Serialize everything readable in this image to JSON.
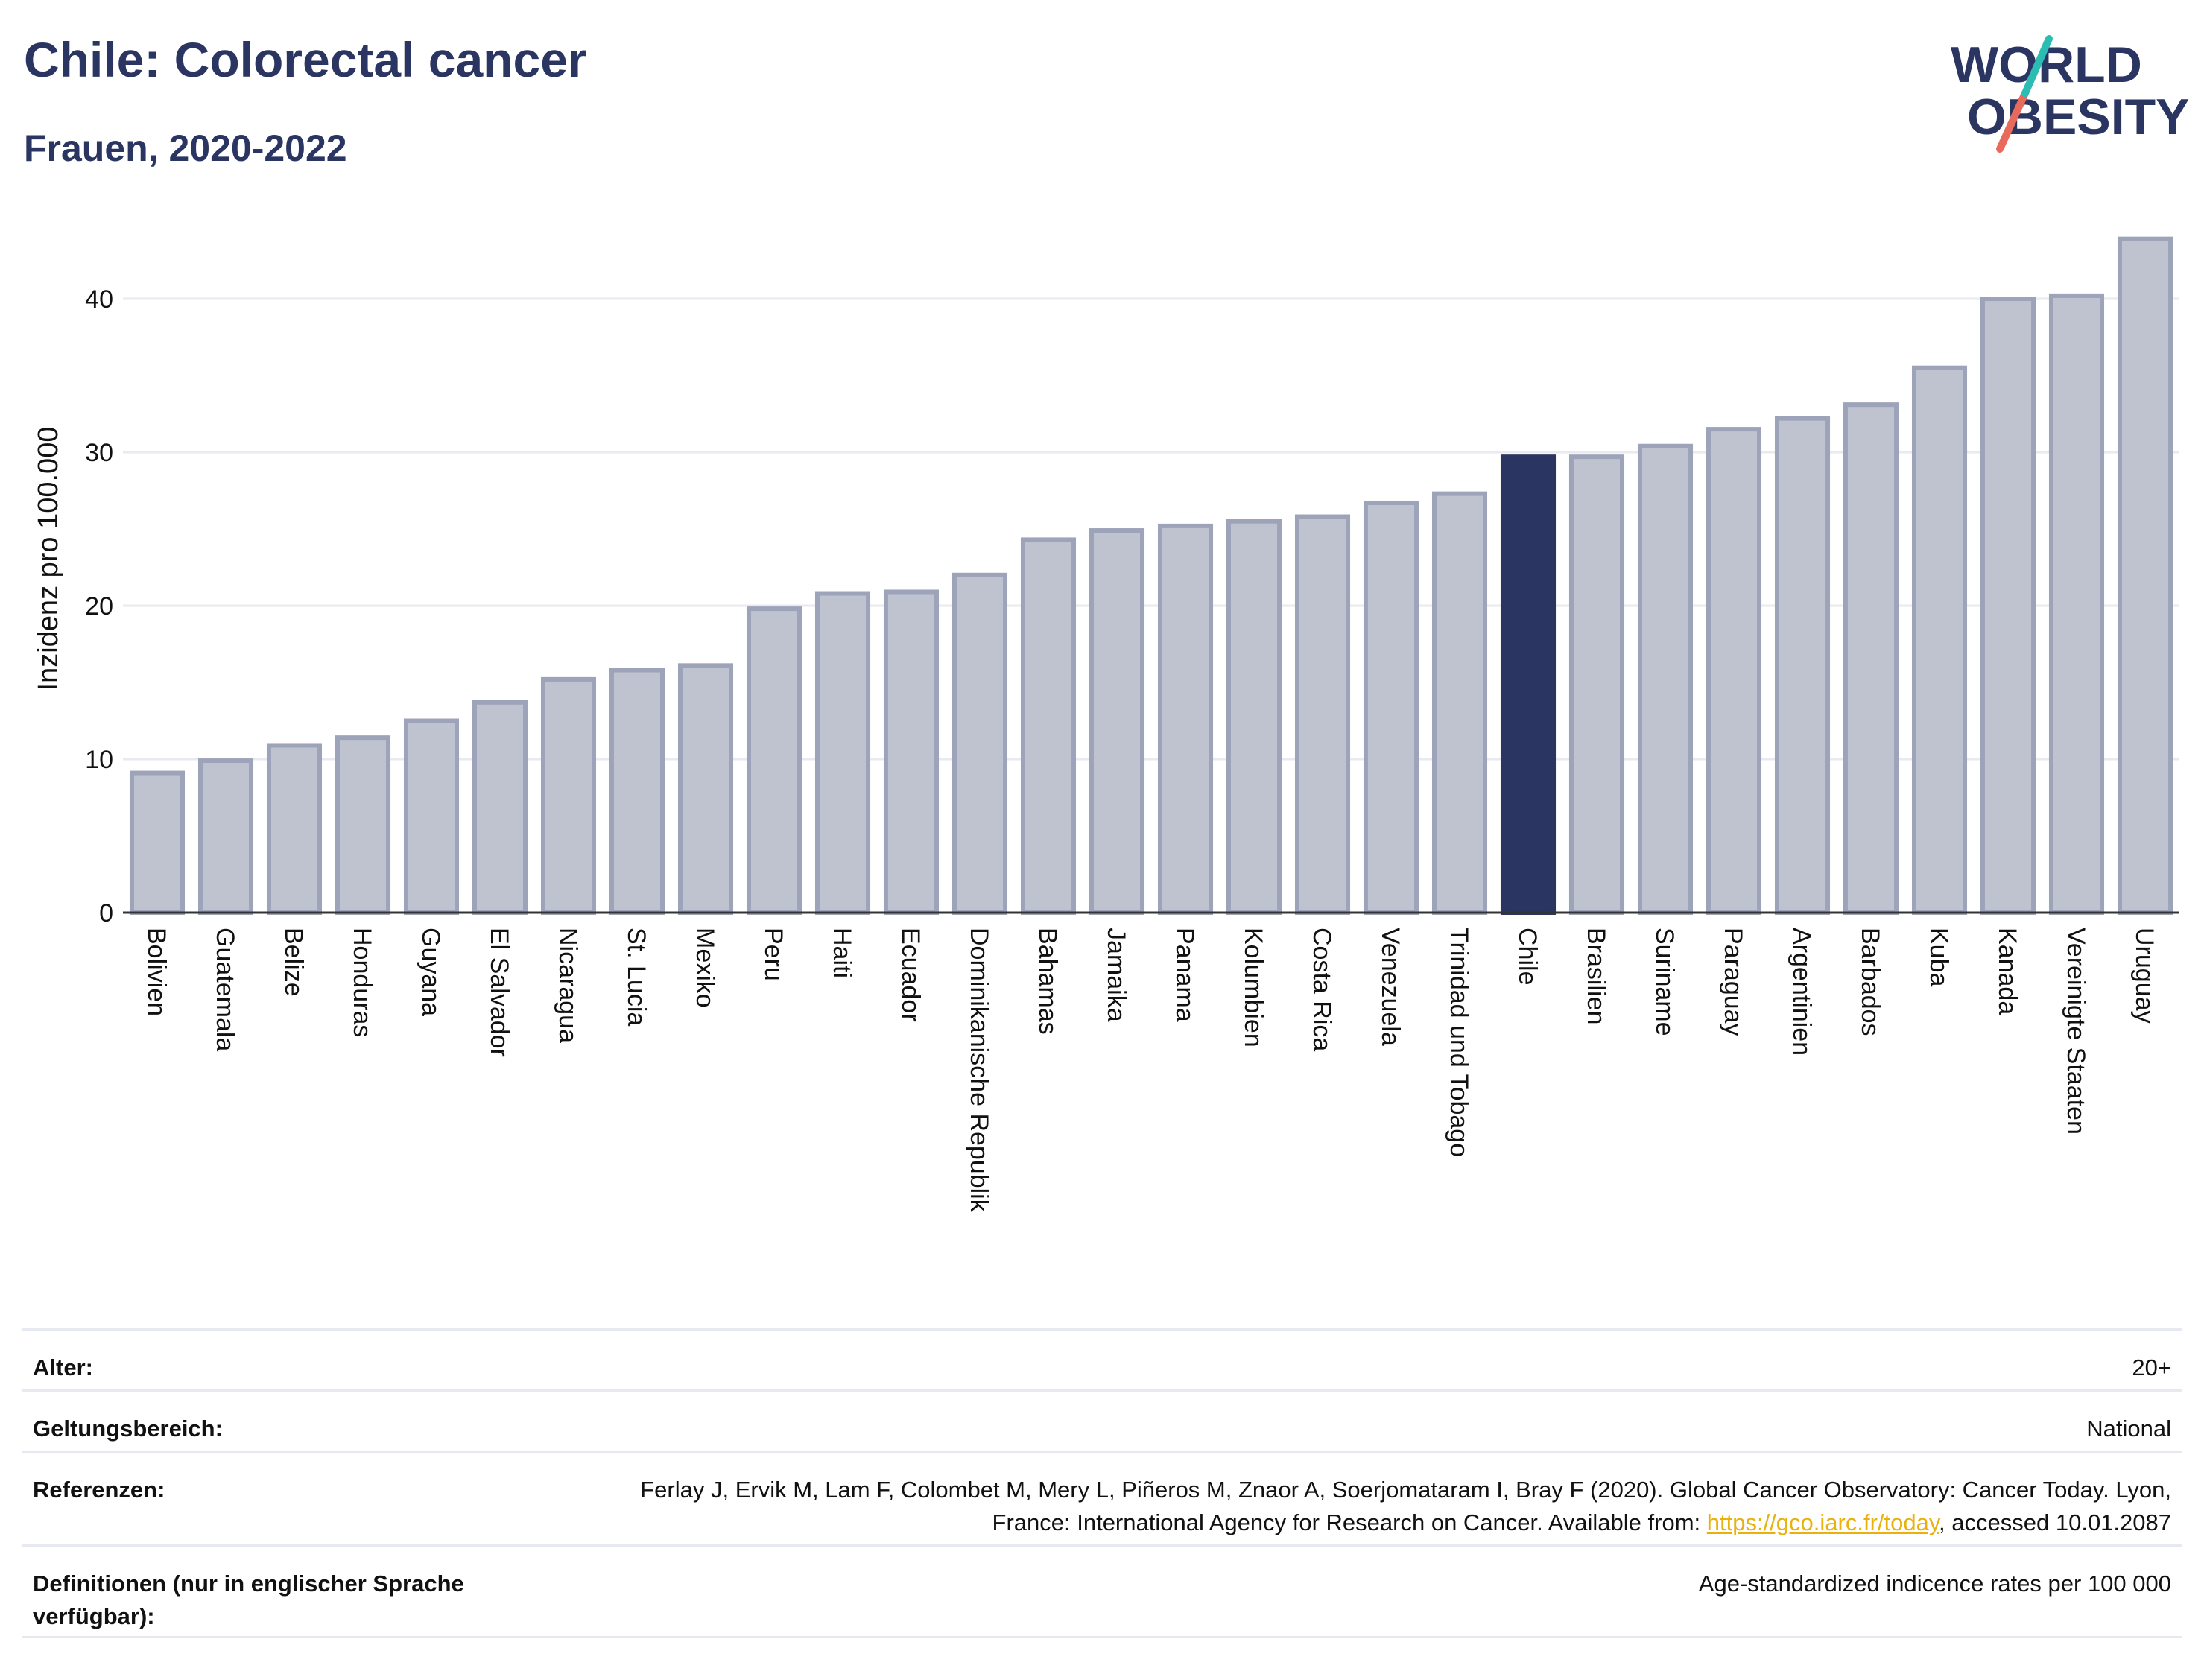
{
  "header": {
    "title": "Chile: Colorectal cancer",
    "subtitle": "Frauen, 2020-2022"
  },
  "logo": {
    "line1": "WORLD",
    "line2": "OBESITY"
  },
  "colors": {
    "bar_fill": "#bfc3d0",
    "bar_stroke": "#9da3b8",
    "highlight": "#2b3561",
    "title": "#2b3561",
    "grid": "#e8eaef",
    "link": "#e8b10e"
  },
  "chart_data": {
    "type": "bar",
    "ylabel": "Inzidenz pro 100.000",
    "ylim": [
      0,
      44
    ],
    "yticks": [
      0,
      10,
      20,
      30,
      40
    ],
    "grid": true,
    "highlight": "Chile",
    "categories": [
      "Bolivien",
      "Guatemala",
      "Belize",
      "Honduras",
      "Guyana",
      "El Salvador",
      "Nicaragua",
      "St. Lucia",
      "Mexiko",
      "Peru",
      "Haiti",
      "Ecuador",
      "Dominikanische Republik",
      "Bahamas",
      "Jamaika",
      "Panama",
      "Kolumbien",
      "Costa Rica",
      "Venezuela",
      "Trinidad und Tobago",
      "Chile",
      "Brasilien",
      "Suriname",
      "Paraguay",
      "Argentinien",
      "Barbados",
      "Kuba",
      "Kanada",
      "Vereinigte Staaten",
      "Uruguay"
    ],
    "values": [
      9.1,
      9.9,
      10.9,
      11.4,
      12.5,
      13.7,
      15.2,
      15.8,
      16.1,
      19.8,
      20.8,
      20.9,
      22.0,
      24.3,
      24.9,
      25.2,
      25.5,
      25.8,
      26.7,
      27.3,
      29.7,
      29.7,
      30.4,
      31.5,
      32.2,
      33.1,
      35.5,
      40.0,
      40.2,
      43.9
    ]
  },
  "info": {
    "alter_label": "Alter:",
    "alter_value": "20+",
    "geltung_label": "Geltungsbereich:",
    "geltung_value": "National",
    "ref_label": "Referenzen:",
    "ref_text_1": "Ferlay J, Ervik M, Lam F, Colombet M, Mery L, Piñeros M, Znaor A, Soerjomataram I, Bray F (2020). Global Cancer Observatory: Cancer Today. Lyon, France: International Agency for Research on Cancer. Available from: ",
    "ref_link": "https://gco.iarc.fr/today",
    "ref_text_2": ", accessed 10.01.2087",
    "def_label": "Definitionen (nur in englischer Sprache verfügbar):",
    "def_value": "Age-standardized indicence rates per 100 000"
  }
}
